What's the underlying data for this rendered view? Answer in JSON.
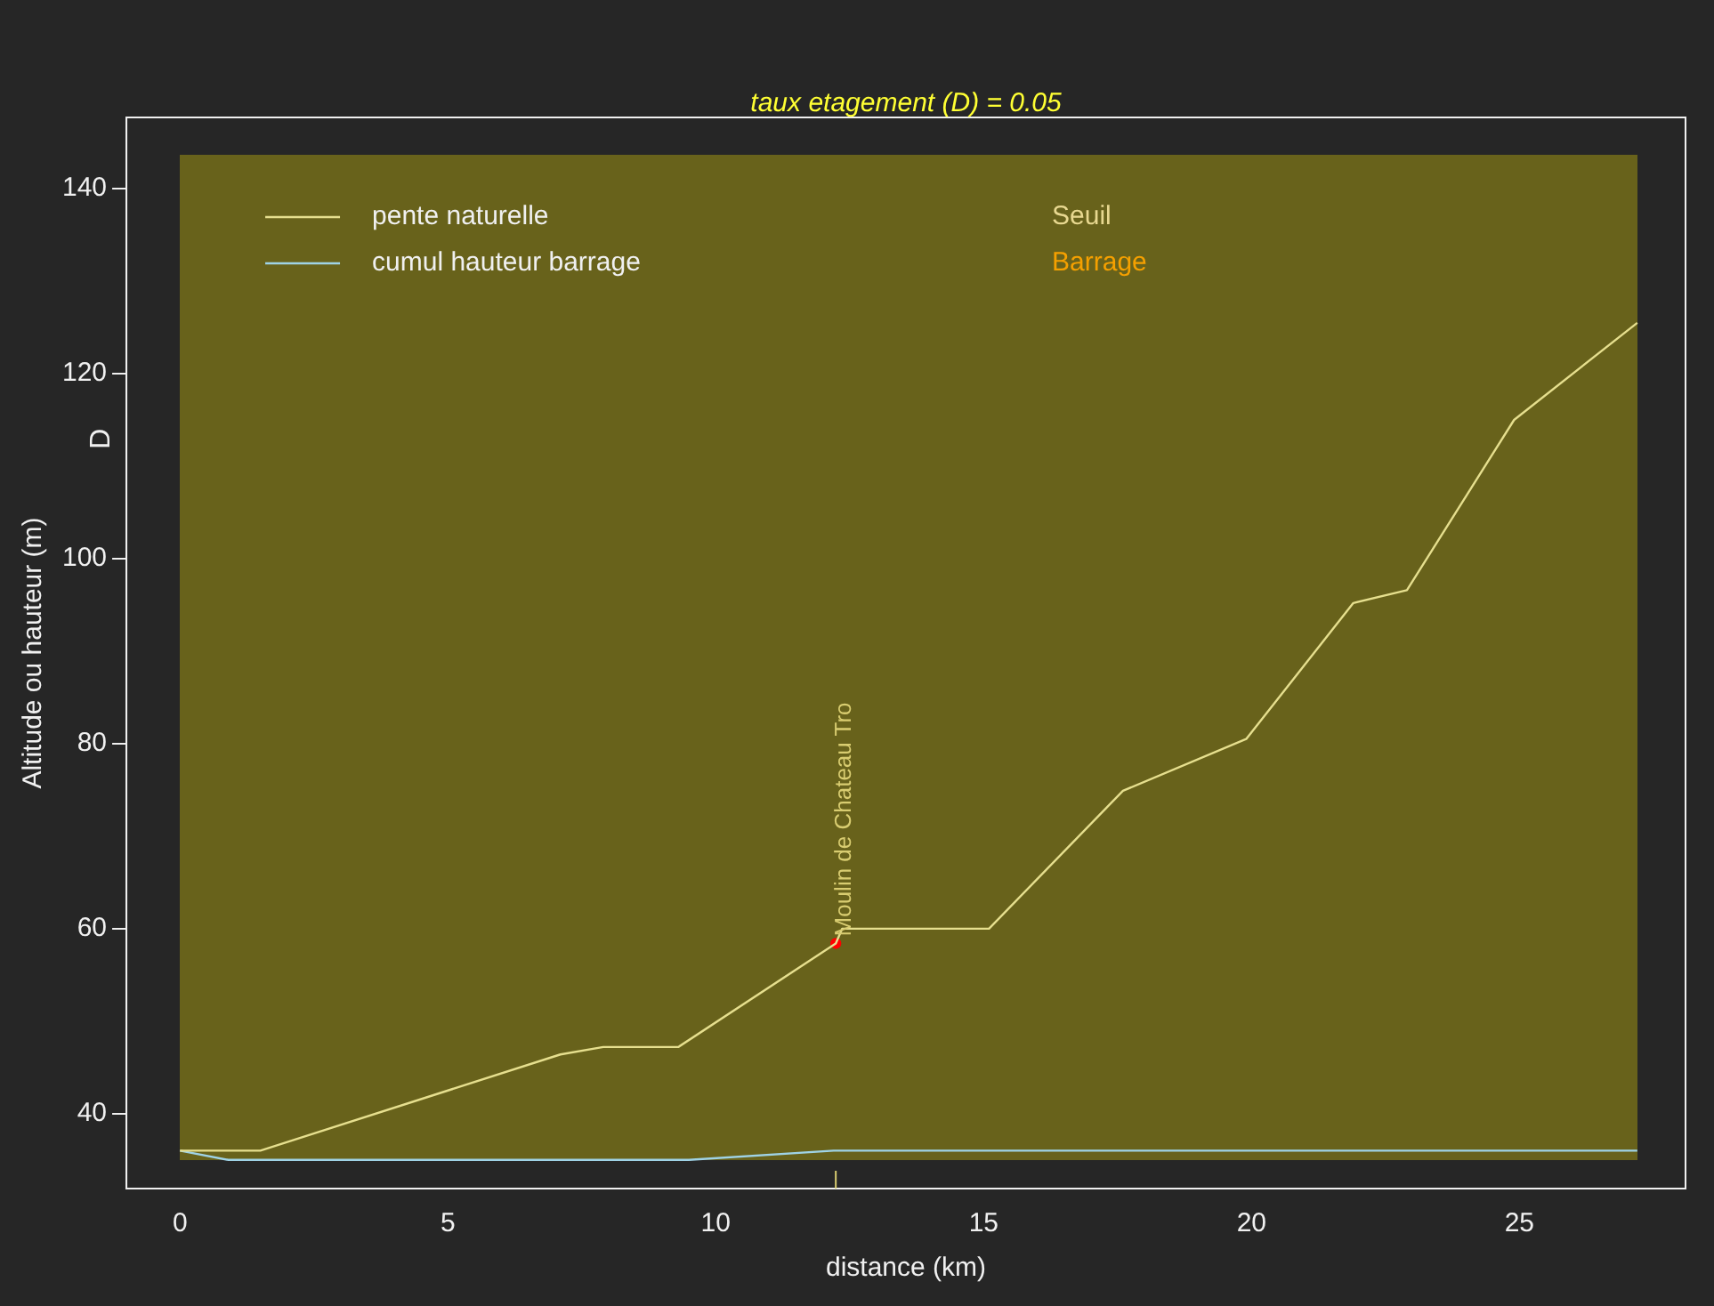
{
  "chart_data": {
    "type": "line",
    "title": "taux etagement (D) = 0.05",
    "xlabel": "distance (km)",
    "ylabel": "Altitude ou hauteur (m)",
    "annotations": [
      "D",
      {
        "text": "Moulin de Chateau Tro",
        "x": 12.24,
        "y": 58.4
      }
    ],
    "series": [
      {
        "name": "pente naturelle",
        "color": "#e6df8e",
        "x": [
          0,
          1.5,
          7.1,
          7.9,
          9.3,
          12.24,
          12.36,
          15.1,
          17.6,
          19.9,
          21.9,
          22.9,
          24.9,
          27.2
        ],
        "values": [
          36,
          36,
          46.4,
          47.2,
          47.2,
          58.4,
          60,
          60,
          74.9,
          80.5,
          95.2,
          96.6,
          115,
          125.5
        ]
      },
      {
        "name": "cumul hauteur barrage",
        "color": "#9fd3e6",
        "x": [
          0,
          0.9,
          9.5,
          12.2,
          27.2
        ],
        "values": [
          36,
          35,
          35,
          36,
          36
        ]
      },
      {
        "type": "scatter",
        "color": "#ff0000",
        "x": [
          12.24
        ],
        "values": [
          58.4
        ]
      },
      {
        "name": "Seuil",
        "type": "scatter",
        "color": "#e8d890"
      },
      {
        "name": "Barrage",
        "type": "scatter",
        "color": "#f5a000"
      }
    ],
    "xlim": [
      -1,
      28.1
    ],
    "ylim": [
      31.9,
      147.7
    ],
    "xticks": [
      0,
      5,
      10,
      15,
      20,
      25
    ],
    "yticks": [
      40,
      60,
      80,
      100,
      120,
      140
    ],
    "grid": false,
    "legend": "top left"
  }
}
